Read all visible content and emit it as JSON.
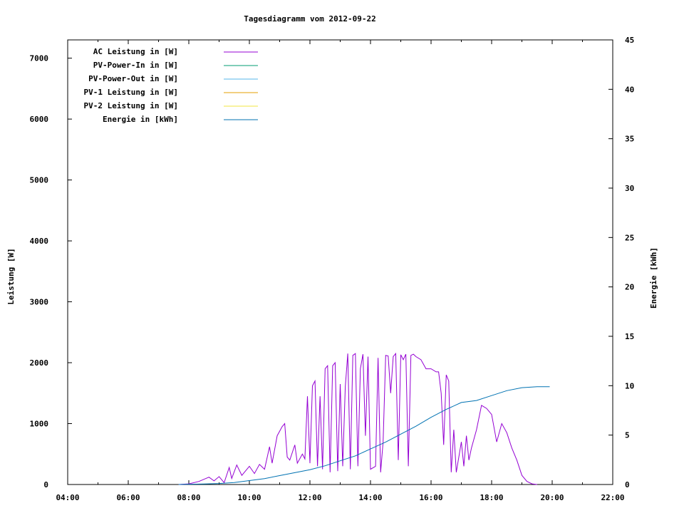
{
  "chart_data": {
    "type": "line",
    "title": "Tagesdiagramm vom 2012-09-22",
    "ylabel": "Leistung [W]",
    "y2label": "Energie [kWh]",
    "xlim": [
      "04:00",
      "22:00"
    ],
    "ylim": [
      0,
      7300
    ],
    "y2lim": [
      0,
      45
    ],
    "x_ticks": [
      "04:00",
      "06:00",
      "08:00",
      "10:00",
      "12:00",
      "14:00",
      "16:00",
      "18:00",
      "20:00",
      "22:00"
    ],
    "y_ticks": [
      "0",
      "1000",
      "2000",
      "3000",
      "4000",
      "5000",
      "6000",
      "7000"
    ],
    "y2_ticks": [
      "0",
      "5",
      "10",
      "15",
      "20",
      "25",
      "30",
      "35",
      "40",
      "45"
    ],
    "legend_position": "top-left",
    "legend": [
      {
        "label": "AC Leistung in [W]",
        "color": "#9400d3"
      },
      {
        "label": "PV-Power-In in [W]",
        "color": "#009e73"
      },
      {
        "label": "PV-Power-Out in [W]",
        "color": "#56b4e9"
      },
      {
        "label": "PV-1 Leistung in [W]",
        "color": "#e69f00"
      },
      {
        "label": "PV-2 Leistung in [W]",
        "color": "#f0e442"
      },
      {
        "label": "Energie in [kWh]",
        "color": "#0072b2"
      }
    ],
    "series": [
      {
        "name": "AC Leistung in [W]",
        "axis": "left",
        "color": "#9400d3",
        "points": [
          [
            "07:40",
            0
          ],
          [
            "08:00",
            10
          ],
          [
            "08:20",
            50
          ],
          [
            "08:40",
            120
          ],
          [
            "08:50",
            60
          ],
          [
            "09:00",
            130
          ],
          [
            "09:10",
            30
          ],
          [
            "09:20",
            280
          ],
          [
            "09:25",
            100
          ],
          [
            "09:35",
            320
          ],
          [
            "09:45",
            150
          ],
          [
            "10:00",
            300
          ],
          [
            "10:10",
            180
          ],
          [
            "10:20",
            330
          ],
          [
            "10:30",
            250
          ],
          [
            "10:40",
            620
          ],
          [
            "10:45",
            350
          ],
          [
            "10:55",
            800
          ],
          [
            "11:05",
            950
          ],
          [
            "11:10",
            1000
          ],
          [
            "11:15",
            450
          ],
          [
            "11:20",
            400
          ],
          [
            "11:30",
            650
          ],
          [
            "11:35",
            350
          ],
          [
            "11:45",
            500
          ],
          [
            "11:50",
            420
          ],
          [
            "11:55",
            1450
          ],
          [
            "12:00",
            350
          ],
          [
            "12:05",
            1620
          ],
          [
            "12:10",
            1700
          ],
          [
            "12:15",
            300
          ],
          [
            "12:20",
            1450
          ],
          [
            "12:25",
            250
          ],
          [
            "12:30",
            1900
          ],
          [
            "12:35",
            1950
          ],
          [
            "12:40",
            200
          ],
          [
            "12:45",
            1950
          ],
          [
            "12:50",
            2000
          ],
          [
            "12:55",
            220
          ],
          [
            "13:00",
            1650
          ],
          [
            "13:05",
            300
          ],
          [
            "13:10",
            1600
          ],
          [
            "13:15",
            2150
          ],
          [
            "13:20",
            250
          ],
          [
            "13:25",
            2120
          ],
          [
            "13:30",
            2150
          ],
          [
            "13:35",
            300
          ],
          [
            "13:40",
            1900
          ],
          [
            "13:45",
            2140
          ],
          [
            "13:50",
            800
          ],
          [
            "13:55",
            2100
          ],
          [
            "14:00",
            250
          ],
          [
            "14:10",
            300
          ],
          [
            "14:15",
            2080
          ],
          [
            "14:20",
            200
          ],
          [
            "14:25",
            700
          ],
          [
            "14:30",
            2120
          ],
          [
            "14:35",
            2110
          ],
          [
            "14:40",
            1500
          ],
          [
            "14:45",
            2100
          ],
          [
            "14:50",
            2150
          ],
          [
            "14:55",
            400
          ],
          [
            "15:00",
            2130
          ],
          [
            "15:05",
            2050
          ],
          [
            "15:10",
            2140
          ],
          [
            "15:15",
            300
          ],
          [
            "15:20",
            2120
          ],
          [
            "15:25",
            2140
          ],
          [
            "15:30",
            2100
          ],
          [
            "15:40",
            2050
          ],
          [
            "15:50",
            1900
          ],
          [
            "16:00",
            1900
          ],
          [
            "16:10",
            1850
          ],
          [
            "16:15",
            1850
          ],
          [
            "16:20",
            1500
          ],
          [
            "16:25",
            650
          ],
          [
            "16:30",
            1800
          ],
          [
            "16:35",
            1700
          ],
          [
            "16:40",
            200
          ],
          [
            "16:45",
            900
          ],
          [
            "16:50",
            200
          ],
          [
            "17:00",
            700
          ],
          [
            "17:05",
            300
          ],
          [
            "17:10",
            800
          ],
          [
            "17:15",
            400
          ],
          [
            "17:20",
            600
          ],
          [
            "17:30",
            900
          ],
          [
            "17:40",
            1300
          ],
          [
            "17:50",
            1250
          ],
          [
            "18:00",
            1150
          ],
          [
            "18:10",
            700
          ],
          [
            "18:20",
            1000
          ],
          [
            "18:30",
            850
          ],
          [
            "18:40",
            600
          ],
          [
            "18:50",
            400
          ],
          [
            "19:00",
            150
          ],
          [
            "19:10",
            50
          ],
          [
            "19:20",
            10
          ],
          [
            "19:30",
            0
          ]
        ]
      },
      {
        "name": "Energie in [kWh]",
        "axis": "right",
        "color": "#0072b2",
        "points": [
          [
            "07:40",
            0
          ],
          [
            "08:30",
            0.05
          ],
          [
            "09:00",
            0.1
          ],
          [
            "09:30",
            0.2
          ],
          [
            "10:00",
            0.4
          ],
          [
            "10:30",
            0.6
          ],
          [
            "11:00",
            0.9
          ],
          [
            "11:30",
            1.2
          ],
          [
            "12:00",
            1.5
          ],
          [
            "12:30",
            1.9
          ],
          [
            "13:00",
            2.4
          ],
          [
            "13:30",
            2.9
          ],
          [
            "14:00",
            3.6
          ],
          [
            "14:30",
            4.3
          ],
          [
            "15:00",
            5.1
          ],
          [
            "15:30",
            5.9
          ],
          [
            "16:00",
            6.8
          ],
          [
            "16:30",
            7.6
          ],
          [
            "17:00",
            8.3
          ],
          [
            "17:30",
            8.5
          ],
          [
            "18:00",
            9.0
          ],
          [
            "18:30",
            9.5
          ],
          [
            "19:00",
            9.8
          ],
          [
            "19:30",
            9.9
          ],
          [
            "19:55",
            9.9
          ]
        ]
      }
    ]
  }
}
